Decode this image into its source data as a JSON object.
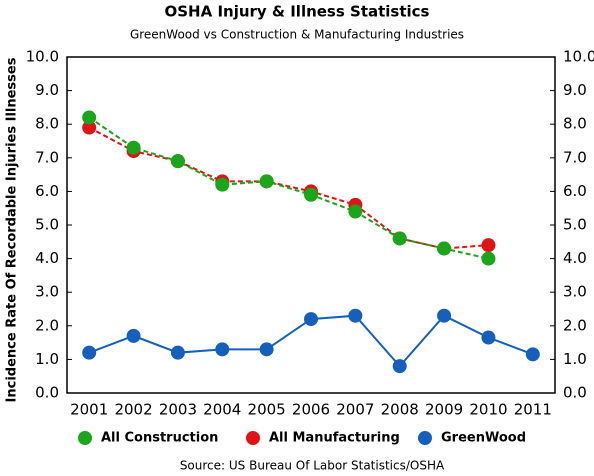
{
  "chart_data": {
    "type": "line",
    "title": "OSHA Injury & Illness Statistics",
    "subtitle": "GreenWood vs Construction & Manufacturing Industries",
    "y_label": "Incidence Rate Of Recordable Injuries Illnesses",
    "source": "Source:  US Bureau Of Labor Statistics/OSHA",
    "categories": [
      "2001",
      "2002",
      "2003",
      "2004",
      "2005",
      "2006",
      "2007",
      "2008",
      "2009",
      "2010",
      "2011"
    ],
    "series": [
      {
        "name": "All Construction",
        "color": "#1aa51a",
        "dashed": true,
        "values": [
          8.2,
          7.3,
          6.9,
          6.2,
          6.3,
          5.9,
          5.4,
          4.6,
          4.3,
          4.0,
          null
        ]
      },
      {
        "name": "All Manufacturing",
        "color": "#e01414",
        "dashed": true,
        "values": [
          7.9,
          7.2,
          6.9,
          6.3,
          6.3,
          6.0,
          5.6,
          4.6,
          4.3,
          4.4,
          null
        ]
      },
      {
        "name": "GreenWood",
        "color": "#1560bd",
        "dashed": false,
        "values": [
          1.2,
          1.7,
          1.2,
          1.3,
          1.3,
          2.2,
          2.3,
          0.8,
          2.3,
          1.65,
          1.15
        ]
      }
    ],
    "ylim": [
      0,
      10
    ],
    "yticks": [
      {
        "value": 0,
        "label": "0.0"
      },
      {
        "value": 1,
        "label": "1.0"
      },
      {
        "value": 2,
        "label": "2.0"
      },
      {
        "value": 3,
        "label": "3.0"
      },
      {
        "value": 4,
        "label": "4.0"
      },
      {
        "value": 5,
        "label": "5.0"
      },
      {
        "value": 6,
        "label": "6.0"
      },
      {
        "value": 7,
        "label": "7.0"
      },
      {
        "value": 8,
        "label": "8.0"
      },
      {
        "value": 9,
        "label": "9.0"
      },
      {
        "value": 10,
        "label": "10.0"
      }
    ],
    "legend": "bottom"
  }
}
